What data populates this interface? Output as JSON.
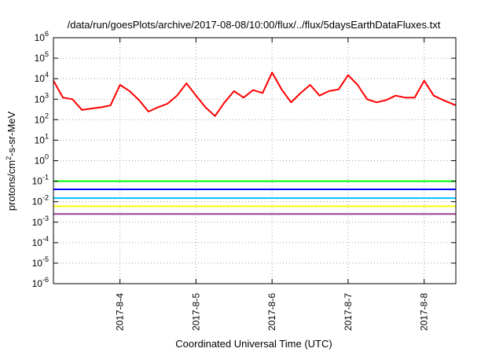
{
  "chart_data": {
    "type": "line",
    "title": "/data/run/goesPlots/archive/2017-08-08/10:00/flux/../flux/5daysEarthDataFluxes.txt",
    "xlabel": "Coordinated Universal Time (UTC)",
    "ylabel_base": "protons/cm",
    "ylabel_sup": "2",
    "ylabel_rest": "-s-sr-MeV",
    "x_scale": "time",
    "y_scale": "log",
    "xlim": [
      "2017-08-03 03:00",
      "2017-08-08 10:00"
    ],
    "ylim": [
      1e-06,
      1000000.0
    ],
    "grid": true,
    "x_ticks": [
      {
        "label": "2017-8-4",
        "value": "2017-08-04 00:00"
      },
      {
        "label": "2017-8-5",
        "value": "2017-08-05 00:00"
      },
      {
        "label": "2017-8-6",
        "value": "2017-08-06 00:00"
      },
      {
        "label": "2017-8-7",
        "value": "2017-08-07 00:00"
      },
      {
        "label": "2017-8-8",
        "value": "2017-08-08 00:00"
      }
    ],
    "y_ticks": [
      {
        "base": "10",
        "exp": "-6",
        "value": 1e-06
      },
      {
        "base": "10",
        "exp": "-5",
        "value": 1e-05
      },
      {
        "base": "10",
        "exp": "-4",
        "value": 0.0001
      },
      {
        "base": "10",
        "exp": "-3",
        "value": 0.001
      },
      {
        "base": "10",
        "exp": "-2",
        "value": 0.01
      },
      {
        "base": "10",
        "exp": "-1",
        "value": 0.1
      },
      {
        "base": "10",
        "exp": "0",
        "value": 1
      },
      {
        "base": "10",
        "exp": "1",
        "value": 10
      },
      {
        "base": "10",
        "exp": "2",
        "value": 100
      },
      {
        "base": "10",
        "exp": "3",
        "value": 1000
      },
      {
        "base": "10",
        "exp": "4",
        "value": 10000
      },
      {
        "base": "10",
        "exp": "5",
        "value": 100000
      },
      {
        "base": "10",
        "exp": "6",
        "value": 1000000
      }
    ],
    "series": [
      {
        "color": "#ff0000",
        "x": [
          "2017-08-03 03:00",
          "2017-08-03 06:00",
          "2017-08-03 09:00",
          "2017-08-03 12:00",
          "2017-08-03 15:00",
          "2017-08-03 18:00",
          "2017-08-03 21:00",
          "2017-08-04 00:00",
          "2017-08-04 03:00",
          "2017-08-04 06:00",
          "2017-08-04 09:00",
          "2017-08-04 12:00",
          "2017-08-04 15:00",
          "2017-08-04 18:00",
          "2017-08-04 21:00",
          "2017-08-05 00:00",
          "2017-08-05 03:00",
          "2017-08-05 06:00",
          "2017-08-05 09:00",
          "2017-08-05 12:00",
          "2017-08-05 15:00",
          "2017-08-05 18:00",
          "2017-08-05 21:00",
          "2017-08-06 00:00",
          "2017-08-06 03:00",
          "2017-08-06 06:00",
          "2017-08-06 09:00",
          "2017-08-06 12:00",
          "2017-08-06 15:00",
          "2017-08-06 18:00",
          "2017-08-06 21:00",
          "2017-08-07 00:00",
          "2017-08-07 03:00",
          "2017-08-07 06:00",
          "2017-08-07 09:00",
          "2017-08-07 12:00",
          "2017-08-07 15:00",
          "2017-08-07 18:00",
          "2017-08-07 21:00",
          "2017-08-08 00:00",
          "2017-08-08 03:00",
          "2017-08-08 06:00",
          "2017-08-08 10:00"
        ],
        "values": [
          8000,
          1200,
          1000,
          300,
          350,
          400,
          500,
          5000,
          2500,
          900,
          250,
          400,
          600,
          1500,
          6000,
          1500,
          400,
          150,
          700,
          2500,
          1200,
          2800,
          2000,
          20000,
          3000,
          700,
          2000,
          5000,
          1500,
          2500,
          3000,
          15000,
          5000,
          1000,
          700,
          900,
          1500,
          1200,
          1200,
          8000,
          1500,
          900,
          500
        ]
      },
      {
        "color": "#00ff00",
        "x": [
          "2017-08-03 03:00",
          "2017-08-04 00:00",
          "2017-08-05 00:00",
          "2017-08-06 00:00",
          "2017-08-07 00:00",
          "2017-08-08 00:00",
          "2017-08-08 10:00"
        ],
        "values": [
          0.1,
          0.1,
          0.1,
          0.1,
          0.1,
          0.1,
          0.1
        ]
      },
      {
        "color": "#0000ff",
        "x": [
          "2017-08-03 03:00",
          "2017-08-04 00:00",
          "2017-08-05 00:00",
          "2017-08-06 00:00",
          "2017-08-07 00:00",
          "2017-08-08 00:00",
          "2017-08-08 10:00"
        ],
        "values": [
          0.04,
          0.04,
          0.04,
          0.04,
          0.04,
          0.04,
          0.04
        ]
      },
      {
        "color": "#00bfff",
        "x": [
          "2017-08-03 03:00",
          "2017-08-04 00:00",
          "2017-08-05 00:00",
          "2017-08-06 00:00",
          "2017-08-07 00:00",
          "2017-08-08 00:00",
          "2017-08-08 10:00"
        ],
        "values": [
          0.015,
          0.015,
          0.015,
          0.015,
          0.015,
          0.015,
          0.015
        ]
      },
      {
        "color": "#ffff00",
        "x": [
          "2017-08-03 03:00",
          "2017-08-04 00:00",
          "2017-08-05 00:00",
          "2017-08-06 00:00",
          "2017-08-07 00:00",
          "2017-08-08 00:00",
          "2017-08-08 10:00"
        ],
        "values": [
          0.006,
          0.006,
          0.006,
          0.006,
          0.006,
          0.006,
          0.006
        ]
      },
      {
        "color": "#9b3d8f",
        "x": [
          "2017-08-03 03:00",
          "2017-08-04 00:00",
          "2017-08-05 00:00",
          "2017-08-06 00:00",
          "2017-08-07 00:00",
          "2017-08-08 00:00",
          "2017-08-08 10:00"
        ],
        "values": [
          0.0025,
          0.0025,
          0.0025,
          0.0025,
          0.0025,
          0.0025,
          0.0025
        ]
      }
    ]
  }
}
